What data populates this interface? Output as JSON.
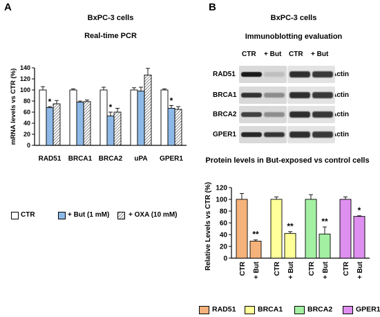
{
  "panel_a": {
    "letter": "A",
    "cell_line": "BxPC-3 cells",
    "assay": "Real-time PCR"
  },
  "panel_b": {
    "letter": "B",
    "cell_line": "BxPC-3 cells",
    "assay": "Immunoblotting evaluation",
    "blot_columns": [
      "CTR",
      "+ But",
      "CTR",
      "+ But"
    ],
    "blot_rows": [
      {
        "left": "RAD51",
        "right": "Actin",
        "ctr_intensity": 0.9,
        "but_intensity": 0.25
      },
      {
        "left": "BRCA1",
        "right": "Actin",
        "ctr_intensity": 0.8,
        "but_intensity": 0.45
      },
      {
        "left": "BRCA2",
        "right": "Actin",
        "ctr_intensity": 0.75,
        "but_intensity": 0.45
      },
      {
        "left": "GPER1",
        "right": "Actin",
        "ctr_intensity": 0.85,
        "but_intensity": 0.8
      }
    ]
  },
  "colors": {
    "ctr": "#ffffff",
    "but_pcr": "#8db9e8",
    "rad51": "#f5b27a",
    "brca1": "#ffff99",
    "brca2": "#a3f0a3",
    "gper1": "#de8fef"
  },
  "chart_data": [
    {
      "type": "bar",
      "title": "Real-time PCR",
      "categories": [
        "RAD51",
        "BRCA1",
        "BRCA2",
        "uPA",
        "GPER1"
      ],
      "series": [
        {
          "name": "CTR",
          "values": [
            100,
            100,
            100,
            100,
            100
          ],
          "errors": [
            6,
            2,
            5,
            4,
            2
          ],
          "pattern": "none"
        },
        {
          "name": "+ But (1 mM)",
          "values": [
            68,
            78,
            53,
            98,
            67
          ],
          "errors": [
            2,
            2,
            7,
            7,
            5
          ],
          "pattern": "none"
        },
        {
          "name": "+ OXA (10 mM)",
          "values": [
            75,
            79,
            60,
            127,
            65
          ],
          "errors": [
            6,
            3,
            7,
            12,
            5
          ],
          "pattern": "hatch"
        }
      ],
      "significance": [
        {
          "category": "RAD51",
          "series": "+ But (1 mM)",
          "mark": "*"
        },
        {
          "category": "BRCA2",
          "series": "+ But (1 mM)",
          "mark": "*"
        },
        {
          "category": "GPER1",
          "series": "+ But (1 mM)",
          "mark": "*"
        }
      ],
      "ylabel": "mRNA levels vs CTR (%)",
      "ylim": [
        0,
        140
      ],
      "yticks": [
        "0",
        "20",
        "40",
        "60",
        "80",
        "100",
        "120",
        "140"
      ],
      "grid": false,
      "legend": "bottom"
    },
    {
      "type": "bar",
      "title": "Protein levels in But-exposed vs control cells",
      "categories": [
        "CTR",
        "+ But",
        "CTR",
        "+ But",
        "CTR",
        "+ But",
        "CTR",
        "+ But"
      ],
      "groups": [
        {
          "name": "RAD51",
          "values": [
            100,
            29
          ],
          "errors": [
            10,
            2
          ],
          "sig": "**"
        },
        {
          "name": "BRCA1",
          "values": [
            100,
            42
          ],
          "errors": [
            4,
            3
          ],
          "sig": "**"
        },
        {
          "name": "BRCA2",
          "values": [
            100,
            41
          ],
          "errors": [
            8,
            12
          ],
          "sig": "**"
        },
        {
          "name": "GPER1",
          "values": [
            100,
            71
          ],
          "errors": [
            4,
            1
          ],
          "sig": "*"
        }
      ],
      "ylabel": "Relative Levels vs CTR (%)",
      "ylim": [
        0,
        120
      ],
      "yticks": [
        "0",
        "20",
        "40",
        "60",
        "80",
        "100",
        "120"
      ],
      "grid": false,
      "legend": "bottom"
    }
  ]
}
